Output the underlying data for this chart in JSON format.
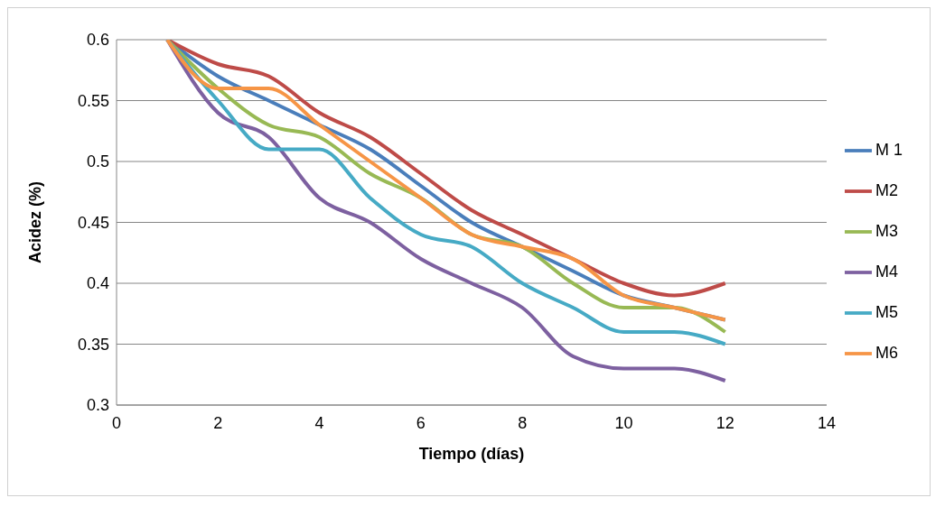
{
  "chart_data": {
    "type": "line",
    "xlabel": "Tiempo (días)",
    "ylabel": "Acidez (%)",
    "x": [
      1,
      2,
      3,
      4,
      5,
      6,
      7,
      8,
      9,
      10,
      11,
      12
    ],
    "series": [
      {
        "name": "M 1",
        "color": "#4a7ebb",
        "values": [
          0.6,
          0.57,
          0.55,
          0.53,
          0.51,
          0.48,
          0.45,
          0.43,
          0.41,
          0.39,
          0.38,
          0.37
        ]
      },
      {
        "name": "M2",
        "color": "#be4b48",
        "values": [
          0.6,
          0.58,
          0.57,
          0.54,
          0.52,
          0.49,
          0.46,
          0.44,
          0.42,
          0.4,
          0.39,
          0.4
        ]
      },
      {
        "name": "M3",
        "color": "#98b954",
        "values": [
          0.6,
          0.56,
          0.53,
          0.52,
          0.49,
          0.47,
          0.44,
          0.43,
          0.4,
          0.38,
          0.38,
          0.36
        ]
      },
      {
        "name": "M4",
        "color": "#7d60a0",
        "values": [
          0.6,
          0.54,
          0.52,
          0.47,
          0.45,
          0.42,
          0.4,
          0.38,
          0.34,
          0.33,
          0.33,
          0.32
        ]
      },
      {
        "name": "M5",
        "color": "#46aac5",
        "values": [
          0.6,
          0.55,
          0.51,
          0.51,
          0.47,
          0.44,
          0.43,
          0.4,
          0.38,
          0.36,
          0.36,
          0.35
        ]
      },
      {
        "name": "M6",
        "color": "#f69546",
        "values": [
          0.6,
          0.56,
          0.56,
          0.53,
          0.5,
          0.47,
          0.44,
          0.43,
          0.42,
          0.39,
          0.38,
          0.37
        ]
      }
    ],
    "xlim": [
      0,
      14
    ],
    "xticks": [
      0,
      2,
      4,
      6,
      8,
      10,
      12,
      14
    ],
    "ylim": [
      0.3,
      0.6
    ],
    "yticks": [
      0.3,
      0.35,
      0.4,
      0.45,
      0.5,
      0.55,
      0.6
    ],
    "grid": "y",
    "legend": "right",
    "marker": "none",
    "line_style": "solid"
  }
}
